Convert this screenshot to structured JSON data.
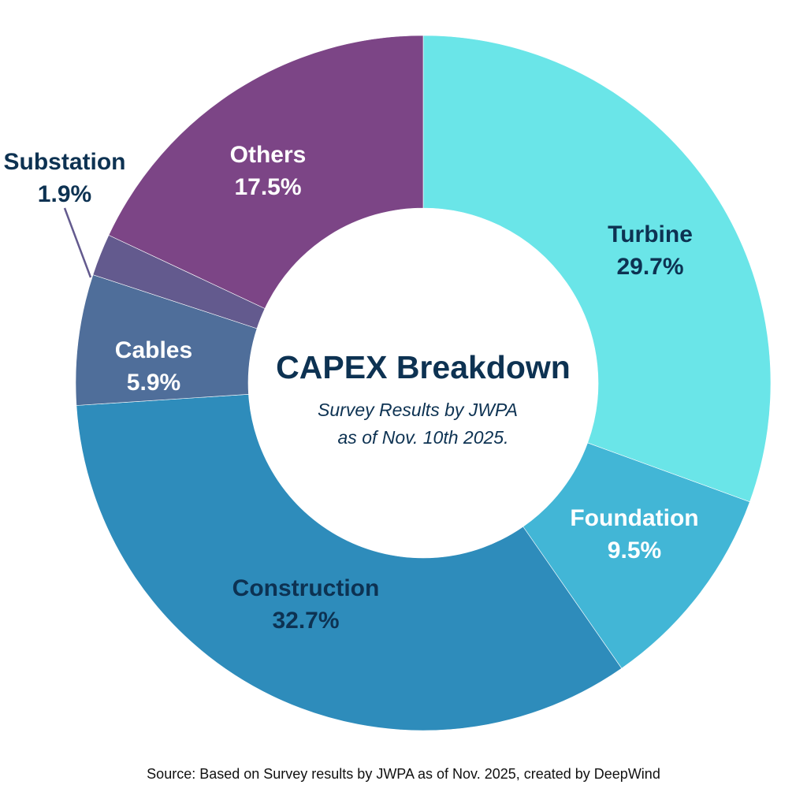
{
  "chart_data": {
    "type": "pie",
    "variant": "donut",
    "title": "CAPEX Breakdown",
    "subtitle_lines": [
      "Survey Results by JWPA",
      "as of Nov. 10th 2025."
    ],
    "slices": [
      {
        "label": "Turbine",
        "value": 29.7,
        "value_label": "29.7%",
        "color": "#6ae5e8",
        "text_color": "#0d3252"
      },
      {
        "label": "Foundation",
        "value": 9.5,
        "value_label": "9.5%",
        "color": "#42b6d6",
        "text_color": "#ffffff"
      },
      {
        "label": "Construction",
        "value": 32.7,
        "value_label": "32.7%",
        "color": "#2e8cbb",
        "text_color": "#0d3252"
      },
      {
        "label": "Cables",
        "value": 5.9,
        "value_label": "5.9%",
        "color": "#4f6e9a",
        "text_color": "#ffffff"
      },
      {
        "label": "Substation",
        "value": 1.9,
        "value_label": "1.9%",
        "color": "#635a8e",
        "text_color": "#0d3252"
      },
      {
        "label": "Others",
        "value": 17.5,
        "value_label": "17.5%",
        "color": "#7c4586",
        "text_color": "#ffffff"
      }
    ],
    "start": "top",
    "direction": "clockwise",
    "legend": "none"
  },
  "source": "Source: Based on Survey results by JWPA as of Nov. 2025, created by DeepWind"
}
